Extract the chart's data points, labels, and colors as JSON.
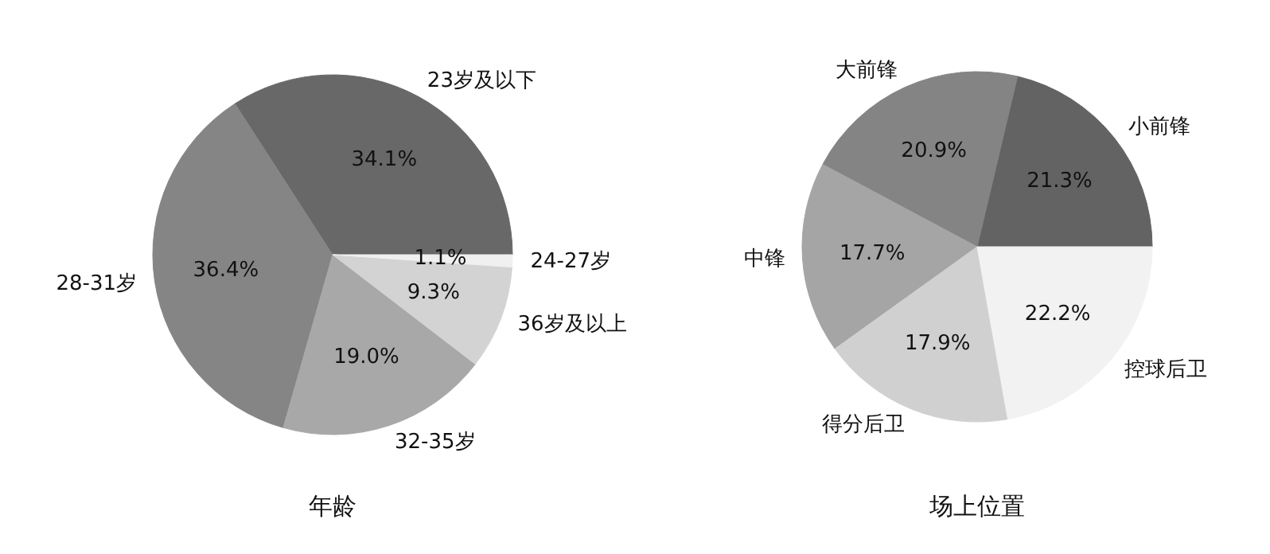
{
  "chart_data": [
    {
      "type": "pie",
      "title": "年龄",
      "categories": [
        "23岁及以下",
        "28-31岁",
        "32-35岁",
        "36岁及以上",
        "24-27岁"
      ],
      "values": [
        34.1,
        36.4,
        19.0,
        9.3,
        1.1
      ],
      "value_labels": [
        "34.1%",
        "36.4%",
        "19.0%",
        "9.3%",
        "1.1%"
      ],
      "colors": [
        "#686868",
        "#858585",
        "#a8a8a8",
        "#d3d3d3",
        "#f0f0f0"
      ]
    },
    {
      "type": "pie",
      "title": "场上位置",
      "categories": [
        "小前锋",
        "大前锋",
        "中锋",
        "得分后卫",
        "控球后卫"
      ],
      "values": [
        21.3,
        20.9,
        17.7,
        17.9,
        22.2
      ],
      "value_labels": [
        "21.3%",
        "20.9%",
        "17.7%",
        "17.9%",
        "22.2%"
      ],
      "colors": [
        "#636363",
        "#848484",
        "#a5a5a5",
        "#d0d0d0",
        "#f2f2f2"
      ]
    }
  ]
}
